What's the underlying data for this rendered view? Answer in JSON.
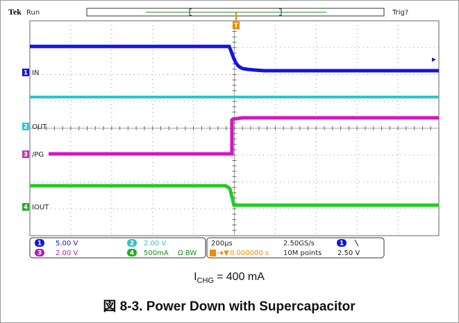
{
  "header": {
    "brand": "Tek",
    "status": "Run",
    "trigger": "Trig?",
    "trigger_marker": "T"
  },
  "channels": [
    {
      "number": "1",
      "label": "IN",
      "scale": "5.00 V"
    },
    {
      "number": "2",
      "label": "OUT",
      "scale": "2.00 V"
    },
    {
      "number": "3",
      "label": "/PG",
      "scale": "2.00 V"
    },
    {
      "number": "4",
      "label": "IOUT",
      "scale": "500mA",
      "flag": "Ω BW"
    }
  ],
  "timebase": {
    "scale": "200µs",
    "sample_rate": "2.50GS/s",
    "trigger_channel": "1",
    "trigger_position": "0.000000 s",
    "record_length": "10M points",
    "trigger_level": "2.50 V"
  },
  "caption": {
    "symbol": "I",
    "subscript": "CHG",
    "text": "= 400 mA"
  },
  "title": "図 8-3. Power Down with Supercapacitor"
}
